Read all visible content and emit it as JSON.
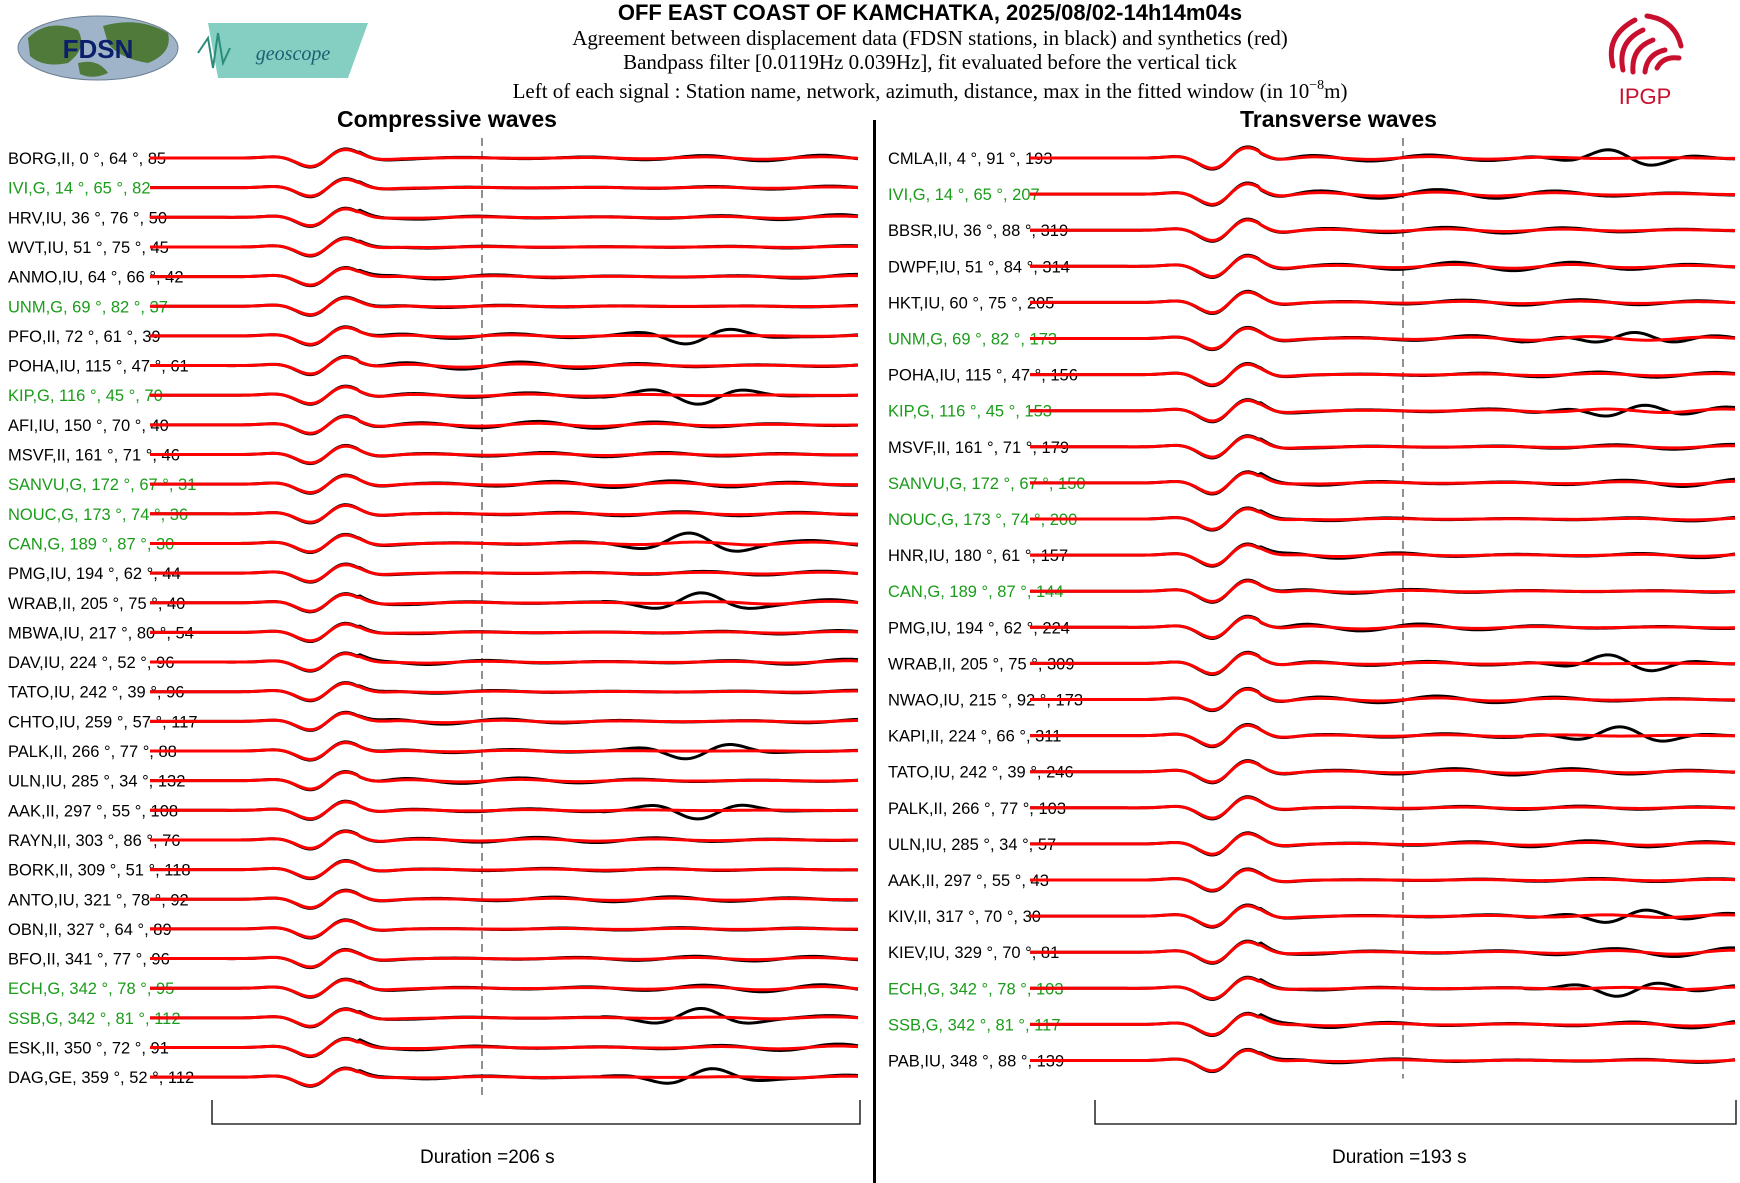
{
  "header": {
    "title": "OFF EAST COAST OF KAMCHATKA, 2025/08/02-14h14m04s",
    "line1": "Agreement between displacement data (FDSN stations, in black) and synthetics (red)",
    "line2": "Bandpass filter [0.0119Hz 0.039Hz], fit evaluated before the vertical tick",
    "line3_pre": "Left of each signal : Station name, network, azimuth, distance, max in the fitted window (in 10",
    "line3_exp": "−8",
    "line3_post": "m)"
  },
  "logos": {
    "fdsn": "FDSN",
    "geoscope": "geoscope",
    "ipgp": "IPGP"
  },
  "colors": {
    "data": "#000000",
    "synthetic": "#ff0000",
    "green_station": "#1a9c1a",
    "ipgp_red": "#c8102e"
  },
  "panels": [
    {
      "title": "Compressive waves",
      "duration": "Duration =206 s",
      "stations": [
        {
          "name": "BORG,II, 0",
          "dist": "64",
          "max": "85",
          "green": false
        },
        {
          "name": "IVI,G, 14",
          "dist": "65",
          "max": "82",
          "green": true
        },
        {
          "name": "HRV,IU, 36",
          "dist": "76",
          "max": "50",
          "green": false
        },
        {
          "name": "WVT,IU, 51",
          "dist": "75",
          "max": "45",
          "green": false
        },
        {
          "name": "ANMO,IU, 64",
          "dist": "66",
          "max": "42",
          "green": false
        },
        {
          "name": "UNM,G, 69",
          "dist": "82",
          "max": "37",
          "green": true
        },
        {
          "name": "PFO,II, 72",
          "dist": "61",
          "max": "39",
          "green": false
        },
        {
          "name": "POHA,IU, 115",
          "dist": "47",
          "max": "61",
          "green": false
        },
        {
          "name": "KIP,G, 116",
          "dist": "45",
          "max": "70",
          "green": true
        },
        {
          "name": "AFI,IU, 150",
          "dist": "70",
          "max": "40",
          "green": false
        },
        {
          "name": "MSVF,II, 161",
          "dist": "71",
          "max": "46",
          "green": false
        },
        {
          "name": "SANVU,G, 172",
          "dist": "67",
          "max": "31",
          "green": true
        },
        {
          "name": "NOUC,G, 173",
          "dist": "74",
          "max": "36",
          "green": true
        },
        {
          "name": "CAN,G, 189",
          "dist": "87",
          "max": "30",
          "green": true
        },
        {
          "name": "PMG,IU, 194",
          "dist": "62",
          "max": "44",
          "green": false
        },
        {
          "name": "WRAB,II, 205",
          "dist": "75",
          "max": "40",
          "green": false
        },
        {
          "name": "MBWA,IU, 217",
          "dist": "80",
          "max": "54",
          "green": false
        },
        {
          "name": "DAV,IU, 224",
          "dist": "52",
          "max": "96",
          "green": false
        },
        {
          "name": "TATO,IU, 242",
          "dist": "39",
          "max": "96",
          "green": false
        },
        {
          "name": "CHTO,IU, 259",
          "dist": "57",
          "max": "117",
          "green": false
        },
        {
          "name": "PALK,II, 266",
          "dist": "77",
          "max": "88",
          "green": false
        },
        {
          "name": "ULN,IU, 285",
          "dist": "34",
          "max": "132",
          "green": false
        },
        {
          "name": "AAK,II, 297",
          "dist": "55",
          "max": "108",
          "green": false
        },
        {
          "name": "RAYN,II, 303",
          "dist": "86",
          "max": "76",
          "green": false
        },
        {
          "name": "BORK,II, 309",
          "dist": "51",
          "max": "118",
          "green": false
        },
        {
          "name": "ANTO,IU, 321",
          "dist": "78",
          "max": "92",
          "green": false
        },
        {
          "name": "OBN,II, 327",
          "dist": "64",
          "max": "89",
          "green": false
        },
        {
          "name": "BFO,II, 341",
          "dist": "77",
          "max": "96",
          "green": false
        },
        {
          "name": "ECH,G, 342",
          "dist": "78",
          "max": "95",
          "green": true
        },
        {
          "name": "SSB,G, 342",
          "dist": "81",
          "max": "112",
          "green": true
        },
        {
          "name": "ESK,II, 350",
          "dist": "72",
          "max": "91",
          "green": false
        },
        {
          "name": "DAG,GE, 359",
          "dist": "52",
          "max": "112",
          "green": false
        }
      ]
    },
    {
      "title": "Transverse waves",
      "duration": "Duration =193 s",
      "stations": [
        {
          "name": "CMLA,II, 4",
          "dist": "91",
          "max": "193",
          "green": false
        },
        {
          "name": "IVI,G, 14",
          "dist": "65",
          "max": "207",
          "green": true
        },
        {
          "name": "BBSR,IU, 36",
          "dist": "88",
          "max": "319",
          "green": false
        },
        {
          "name": "DWPF,IU, 51",
          "dist": "84",
          "max": "314",
          "green": false
        },
        {
          "name": "HKT,IU, 60",
          "dist": "75",
          "max": "205",
          "green": false
        },
        {
          "name": "UNM,G, 69",
          "dist": "82",
          "max": "173",
          "green": true
        },
        {
          "name": "POHA,IU, 115",
          "dist": "47",
          "max": "156",
          "green": false
        },
        {
          "name": "KIP,G, 116",
          "dist": "45",
          "max": "153",
          "green": true
        },
        {
          "name": "MSVF,II, 161",
          "dist": "71",
          "max": "179",
          "green": false
        },
        {
          "name": "SANVU,G, 172",
          "dist": "67",
          "max": "150",
          "green": true
        },
        {
          "name": "NOUC,G, 173",
          "dist": "74",
          "max": "200",
          "green": true
        },
        {
          "name": "HNR,IU, 180",
          "dist": "61",
          "max": "157",
          "green": false
        },
        {
          "name": "CAN,G, 189",
          "dist": "87",
          "max": "144",
          "green": true
        },
        {
          "name": "PMG,IU, 194",
          "dist": "62",
          "max": "224",
          "green": false
        },
        {
          "name": "WRAB,II, 205",
          "dist": "75",
          "max": "309",
          "green": false
        },
        {
          "name": "NWAO,IU, 215",
          "dist": "92",
          "max": "173",
          "green": false
        },
        {
          "name": "KAPI,II, 224",
          "dist": "66",
          "max": "311",
          "green": false
        },
        {
          "name": "TATO,IU, 242",
          "dist": "39",
          "max": "246",
          "green": false
        },
        {
          "name": "PALK,II, 266",
          "dist": "77",
          "max": "103",
          "green": false
        },
        {
          "name": "ULN,IU, 285",
          "dist": "34",
          "max": "57",
          "green": false
        },
        {
          "name": "AAK,II, 297",
          "dist": "55",
          "max": "43",
          "green": false
        },
        {
          "name": "KIV,II, 317",
          "dist": "70",
          "max": "30",
          "green": false
        },
        {
          "name": "KIEV,IU, 329",
          "dist": "70",
          "max": "81",
          "green": false
        },
        {
          "name": "ECH,G, 342",
          "dist": "78",
          "max": "103",
          "green": true
        },
        {
          "name": "SSB,G, 342",
          "dist": "81",
          "max": "117",
          "green": true
        },
        {
          "name": "PAB,IU, 348",
          "dist": "88",
          "max": "139",
          "green": false
        }
      ]
    }
  ]
}
